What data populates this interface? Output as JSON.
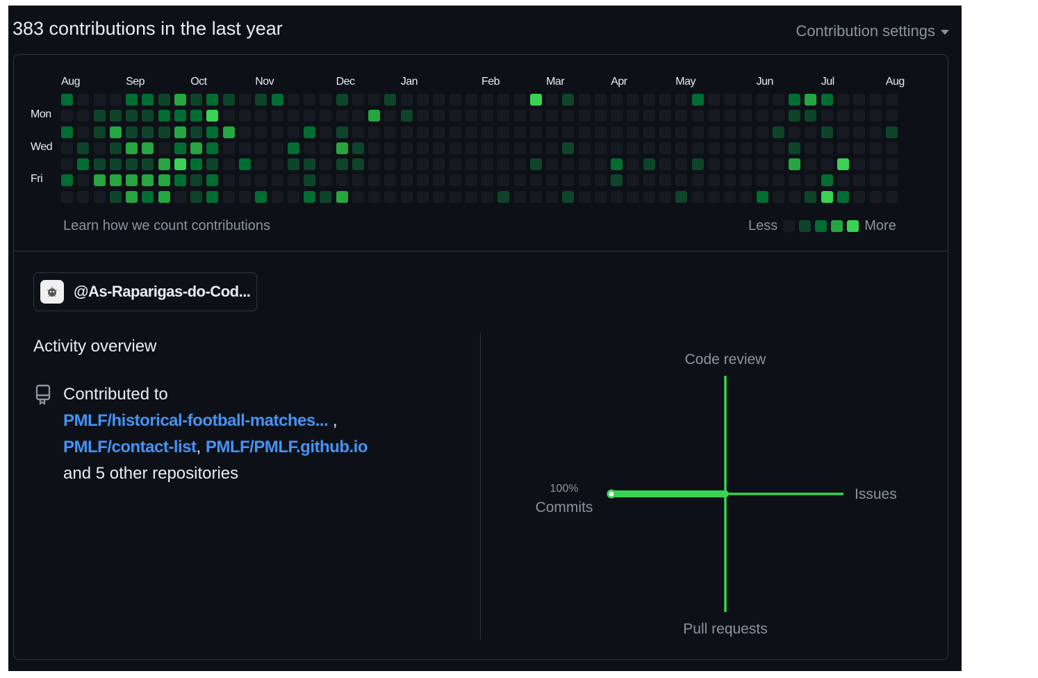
{
  "header": {
    "title": "383 contributions in the last year",
    "settings_label": "Contribution settings"
  },
  "calendar": {
    "months": [
      {
        "label": "Aug",
        "week": 0
      },
      {
        "label": "Sep",
        "week": 4
      },
      {
        "label": "Oct",
        "week": 8
      },
      {
        "label": "Nov",
        "week": 12
      },
      {
        "label": "Dec",
        "week": 17
      },
      {
        "label": "Jan",
        "week": 21
      },
      {
        "label": "Feb",
        "week": 26
      },
      {
        "label": "Mar",
        "week": 30
      },
      {
        "label": "Apr",
        "week": 34
      },
      {
        "label": "May",
        "week": 38
      },
      {
        "label": "Jun",
        "week": 43
      },
      {
        "label": "Jul",
        "week": 47
      },
      {
        "label": "Aug",
        "week": 51
      }
    ],
    "day_labels": [
      {
        "label": "Mon",
        "day": 1
      },
      {
        "label": "Wed",
        "day": 3
      },
      {
        "label": "Fri",
        "day": 5
      }
    ],
    "colors": [
      "#161b22",
      "#0e4429",
      "#006d32",
      "#26a641",
      "#39d353"
    ],
    "weeks": [
      [
        2,
        0,
        2,
        0,
        0,
        2,
        0
      ],
      [
        0,
        0,
        0,
        1,
        2,
        0,
        0
      ],
      [
        0,
        1,
        1,
        0,
        1,
        3,
        0
      ],
      [
        0,
        1,
        3,
        1,
        1,
        3,
        1
      ],
      [
        2,
        1,
        1,
        3,
        1,
        3,
        3
      ],
      [
        2,
        1,
        1,
        3,
        1,
        3,
        2
      ],
      [
        1,
        2,
        1,
        0,
        3,
        3,
        3
      ],
      [
        3,
        2,
        3,
        2,
        4,
        2,
        0
      ],
      [
        1,
        2,
        1,
        3,
        2,
        1,
        1
      ],
      [
        2,
        4,
        2,
        2,
        1,
        2,
        2
      ],
      [
        1,
        0,
        3,
        0,
        0,
        0,
        0
      ],
      [
        0,
        0,
        0,
        0,
        2,
        0,
        0
      ],
      [
        1,
        0,
        0,
        0,
        0,
        0,
        2
      ],
      [
        2,
        0,
        0,
        0,
        0,
        0,
        0
      ],
      [
        0,
        0,
        0,
        2,
        1,
        0,
        0
      ],
      [
        0,
        0,
        2,
        0,
        1,
        1,
        2
      ],
      [
        0,
        0,
        0,
        0,
        0,
        0,
        1
      ],
      [
        1,
        0,
        1,
        3,
        1,
        0,
        3
      ],
      [
        0,
        0,
        0,
        1,
        1,
        0,
        0
      ],
      [
        0,
        3,
        0,
        0,
        0,
        0,
        0
      ],
      [
        1,
        0,
        0,
        0,
        0,
        0,
        0
      ],
      [
        0,
        1,
        0,
        0,
        0,
        0,
        0
      ],
      [
        0,
        0,
        0,
        0,
        0,
        0,
        0
      ],
      [
        0,
        0,
        0,
        0,
        0,
        0,
        0
      ],
      [
        0,
        0,
        0,
        0,
        0,
        0,
        0
      ],
      [
        0,
        0,
        0,
        0,
        0,
        0,
        0
      ],
      [
        0,
        0,
        0,
        0,
        0,
        0,
        0
      ],
      [
        0,
        0,
        0,
        0,
        0,
        0,
        1
      ],
      [
        0,
        0,
        0,
        0,
        0,
        0,
        0
      ],
      [
        4,
        0,
        0,
        0,
        1,
        0,
        0
      ],
      [
        0,
        0,
        0,
        0,
        0,
        0,
        0
      ],
      [
        1,
        0,
        0,
        1,
        0,
        0,
        1
      ],
      [
        0,
        0,
        0,
        0,
        0,
        0,
        0
      ],
      [
        0,
        0,
        0,
        0,
        0,
        0,
        0
      ],
      [
        0,
        0,
        0,
        0,
        2,
        1,
        0
      ],
      [
        0,
        0,
        0,
        0,
        0,
        0,
        0
      ],
      [
        0,
        0,
        0,
        0,
        1,
        0,
        0
      ],
      [
        0,
        0,
        0,
        0,
        0,
        0,
        0
      ],
      [
        0,
        0,
        0,
        0,
        0,
        0,
        1
      ],
      [
        2,
        0,
        0,
        0,
        1,
        0,
        0
      ],
      [
        0,
        0,
        0,
        0,
        0,
        0,
        0
      ],
      [
        0,
        0,
        0,
        0,
        0,
        0,
        0
      ],
      [
        0,
        0,
        0,
        0,
        0,
        0,
        0
      ],
      [
        0,
        0,
        0,
        0,
        0,
        0,
        2
      ],
      [
        0,
        0,
        1,
        0,
        0,
        0,
        0
      ],
      [
        2,
        1,
        0,
        1,
        3,
        0,
        0
      ],
      [
        3,
        1,
        0,
        0,
        0,
        0,
        1
      ],
      [
        2,
        0,
        1,
        0,
        0,
        2,
        4
      ],
      [
        0,
        0,
        0,
        0,
        4,
        0,
        2
      ],
      [
        0,
        0,
        0,
        0,
        0,
        0,
        0
      ],
      [
        0,
        0,
        0,
        0,
        0,
        0,
        0
      ],
      [
        0,
        0,
        1,
        0,
        0,
        0,
        0
      ]
    ],
    "learn_link": "Learn how we count contributions",
    "legend_less": "Less",
    "legend_more": "More"
  },
  "organization": {
    "name": "@As-Raparigas-do-Cod..."
  },
  "activity": {
    "title": "Activity overview",
    "contributed_prefix": "Contributed to",
    "repos": [
      "PMLF/historical-football-matches...",
      "PMLF/contact-list",
      "PMLF/PMLF.github.io"
    ],
    "sep_comma_1": " ,",
    "sep_comma_2": ", ",
    "others": "and 5 other repositories"
  },
  "radar": {
    "code_review": "Code review",
    "issues": "Issues",
    "pull_requests": "Pull requests",
    "commits": "Commits",
    "commits_pct": "100%",
    "shares": {
      "commits": 100,
      "issues": 0,
      "pull_requests": 0,
      "code_review": 0
    },
    "color": "#39d353"
  }
}
